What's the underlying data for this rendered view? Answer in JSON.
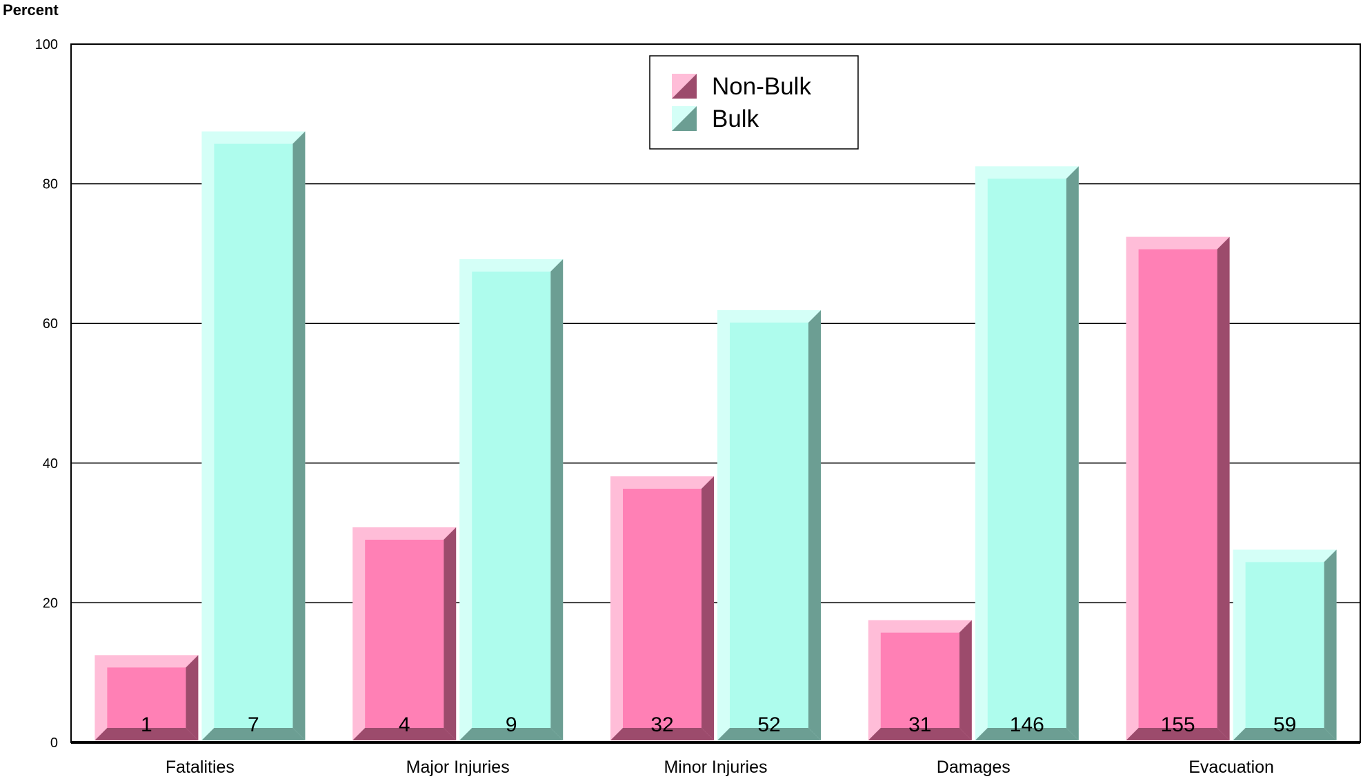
{
  "chart_data": {
    "type": "bar",
    "title": "",
    "ylabel": "Percent",
    "xlabel": "",
    "ylim": [
      0,
      100
    ],
    "yticks": [
      0,
      20,
      40,
      60,
      80,
      100
    ],
    "grid": true,
    "legend_position": "top-center",
    "categories": [
      "Fatalities",
      "Major Injuries",
      "Minor Injuries",
      "Damages",
      "Evacuation"
    ],
    "series": [
      {
        "name": "Non-Bulk",
        "values": [
          12.5,
          30.8,
          38.1,
          17.5,
          72.4
        ],
        "labels": [
          "1",
          "4",
          "32",
          "31",
          "155"
        ],
        "colors": {
          "face": "#ff80b5",
          "top": "#ffbdd8",
          "side": "#9c4b6c"
        }
      },
      {
        "name": "Bulk",
        "values": [
          87.5,
          69.2,
          61.9,
          82.5,
          27.6
        ],
        "labels": [
          "7",
          "9",
          "52",
          "146",
          "59"
        ],
        "colors": {
          "face": "#aefced",
          "top": "#d4fff7",
          "side": "#6c9e93"
        }
      }
    ]
  }
}
